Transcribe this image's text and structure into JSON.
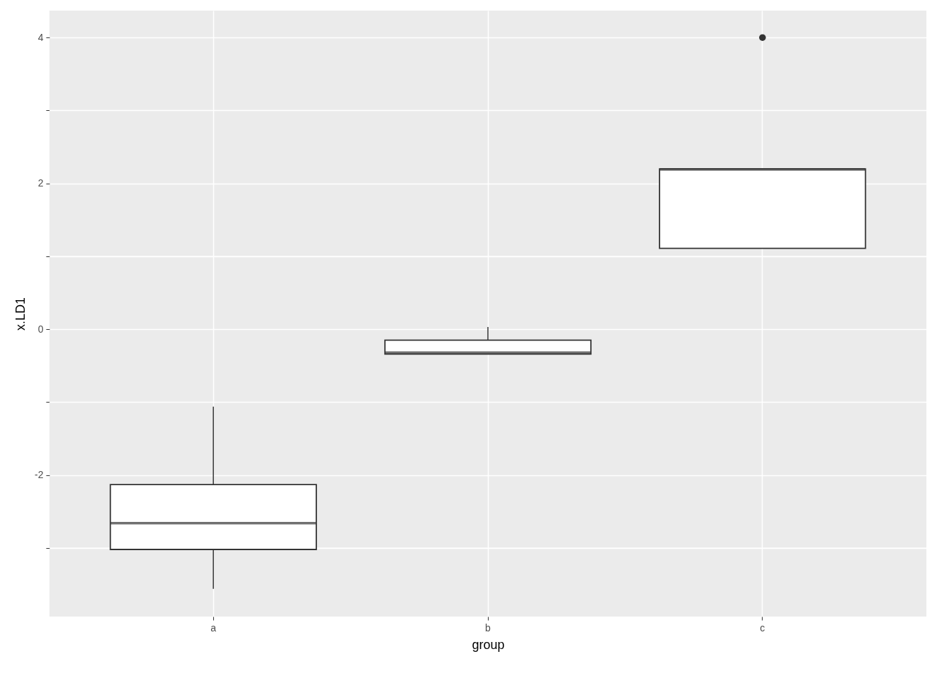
{
  "chart_data": {
    "type": "box",
    "xlabel": "group",
    "ylabel": "x.LD1",
    "categories": [
      "a",
      "b",
      "c"
    ],
    "boxes": [
      {
        "low": -3.56,
        "q1": -3.02,
        "median": -2.66,
        "q3": -2.13,
        "high": -1.06
      },
      {
        "low": -0.34,
        "q1": -0.34,
        "median": -0.32,
        "q3": -0.15,
        "high": 0.03
      },
      {
        "low": 1.11,
        "q1": 1.11,
        "median": 2.19,
        "q3": 2.2,
        "high": 2.2,
        "outliers": [
          4
        ]
      }
    ],
    "ylim": [
      -3.94,
      4.37
    ],
    "yticks": [
      {
        "value": -3,
        "label": null
      },
      -2,
      {
        "value": -1,
        "label": null
      },
      0,
      {
        "value": 1,
        "label": null
      },
      2,
      {
        "value": 3,
        "label": null
      },
      4
    ],
    "grid": true
  }
}
